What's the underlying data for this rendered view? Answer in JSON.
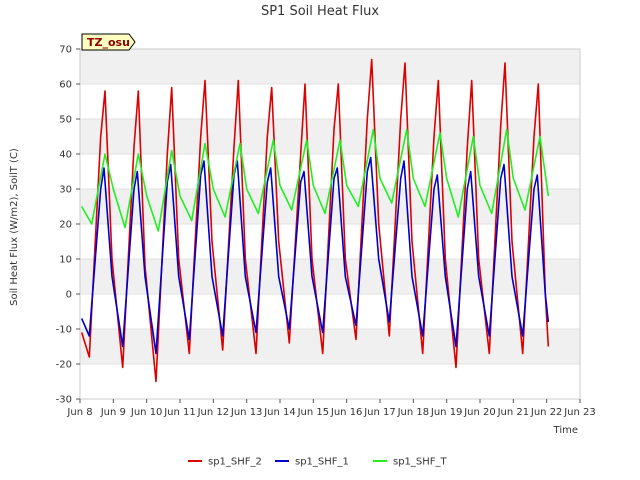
{
  "chart_data": {
    "type": "line",
    "title": "SP1 Soil Heat Flux",
    "xlabel": "Time",
    "ylabel": "Soil Heat Flux (W/m2), SoilT (C)",
    "badge": "TZ_osu",
    "xlim": [
      8,
      23
    ],
    "ylim": [
      -30,
      70
    ],
    "x_ticks": [
      8,
      9,
      10,
      11,
      12,
      13,
      14,
      15,
      16,
      17,
      18,
      19,
      20,
      21,
      22,
      23
    ],
    "x_tick_labels": [
      "Jun 8",
      "Jun 9",
      "Jun 10",
      "Jun 11",
      "Jun 12",
      "Jun 13",
      "Jun 14",
      "Jun 15",
      "Jun 16",
      "Jun 17",
      "Jun 18",
      "Jun 19",
      "Jun 20",
      "Jun 21",
      "Jun 22",
      "Jun 23"
    ],
    "y_ticks": [
      -30,
      -20,
      -10,
      0,
      10,
      20,
      30,
      40,
      50,
      60,
      70
    ],
    "grid": "horizontal bands",
    "legend_position": "bottom",
    "series": [
      {
        "name": "sp1_SHF_2",
        "color": "#dd0000",
        "x": [
          8.05,
          8.28,
          8.62,
          8.75,
          8.96,
          9.28,
          9.62,
          9.75,
          9.95,
          10.28,
          10.62,
          10.75,
          10.96,
          11.28,
          11.62,
          11.75,
          11.96,
          12.28,
          12.62,
          12.75,
          12.96,
          13.28,
          13.62,
          13.75,
          13.96,
          14.28,
          14.62,
          14.75,
          14.96,
          15.28,
          15.62,
          15.75,
          15.96,
          16.28,
          16.62,
          16.75,
          16.96,
          17.28,
          17.62,
          17.75,
          17.96,
          18.28,
          18.62,
          18.75,
          18.96,
          19.28,
          19.62,
          19.75,
          19.96,
          20.28,
          20.62,
          20.75,
          20.96,
          21.28,
          21.62,
          21.75,
          21.96,
          22.05
        ],
        "y": [
          -11,
          -18,
          45,
          58,
          10,
          -21,
          42,
          58,
          8,
          -25,
          40,
          59,
          10,
          -17,
          45,
          61,
          15,
          -16,
          42,
          61,
          10,
          -17,
          45,
          59,
          15,
          -14,
          40,
          60,
          10,
          -17,
          47,
          60,
          10,
          -13,
          50,
          67,
          20,
          -12,
          50,
          66,
          15,
          -17,
          45,
          61,
          10,
          -21,
          42,
          61,
          10,
          -17,
          48,
          66,
          15,
          -17,
          45,
          60,
          0,
          -15
        ]
      },
      {
        "name": "sp1_SHF_1",
        "color": "#0000cc",
        "x": [
          8.05,
          8.28,
          8.62,
          8.72,
          8.96,
          9.28,
          9.62,
          9.72,
          9.95,
          10.28,
          10.62,
          10.72,
          10.96,
          11.28,
          11.62,
          11.72,
          11.96,
          12.28,
          12.62,
          12.72,
          12.96,
          13.28,
          13.62,
          13.72,
          13.96,
          14.28,
          14.62,
          14.72,
          14.96,
          15.28,
          15.62,
          15.72,
          15.96,
          16.28,
          16.62,
          16.72,
          16.96,
          17.28,
          17.62,
          17.72,
          17.96,
          18.28,
          18.62,
          18.72,
          18.96,
          19.28,
          19.62,
          19.72,
          19.96,
          20.28,
          20.62,
          20.72,
          20.96,
          21.28,
          21.62,
          21.72,
          21.96,
          22.05
        ],
        "y": [
          -7,
          -12,
          30,
          36,
          5,
          -15,
          30,
          35,
          5,
          -17,
          32,
          37,
          5,
          -13,
          34,
          38,
          5,
          -12,
          34,
          38,
          5,
          -11,
          32,
          36,
          5,
          -10,
          32,
          35,
          5,
          -11,
          33,
          36,
          5,
          -9,
          35,
          39,
          10,
          -8,
          33,
          38,
          5,
          -12,
          30,
          34,
          5,
          -15,
          30,
          35,
          5,
          -12,
          33,
          37,
          5,
          -12,
          30,
          34,
          0,
          -8
        ]
      },
      {
        "name": "sp1_SHF_T",
        "color": "#22ee22",
        "x": [
          8.05,
          8.35,
          8.75,
          9.0,
          9.35,
          9.75,
          10.0,
          10.35,
          10.75,
          11.0,
          11.35,
          11.75,
          12.0,
          12.35,
          12.8,
          13.0,
          13.35,
          13.8,
          14.0,
          14.35,
          14.8,
          15.0,
          15.35,
          15.8,
          16.0,
          16.35,
          16.8,
          17.0,
          17.35,
          17.8,
          18.0,
          18.35,
          18.8,
          19.0,
          19.35,
          19.8,
          20.0,
          20.35,
          20.8,
          21.0,
          21.35,
          21.8,
          22.05
        ],
        "y": [
          25,
          20,
          40,
          30,
          19,
          40,
          28,
          18,
          41,
          28,
          21,
          43,
          30,
          22,
          43,
          30,
          23,
          44,
          31,
          24,
          44,
          31,
          23,
          44,
          31,
          25,
          47,
          33,
          26,
          47,
          33,
          25,
          46,
          33,
          22,
          45,
          31,
          23,
          47,
          33,
          24,
          45,
          28
        ]
      }
    ]
  }
}
